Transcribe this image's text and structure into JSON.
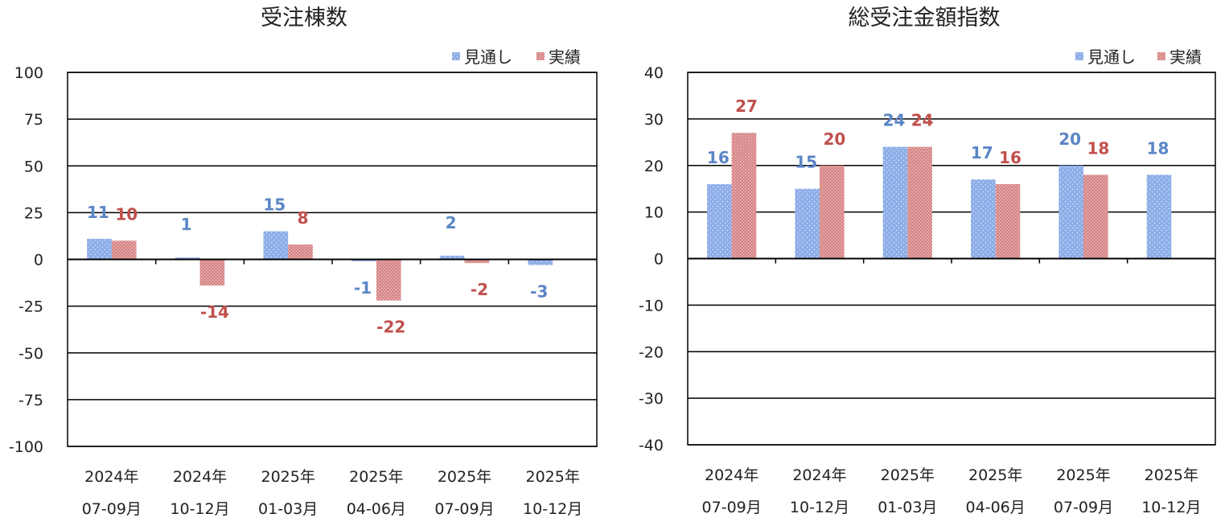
{
  "colors": {
    "forecast": "#8eaee8",
    "actual": "#d98a8a",
    "forecast_label": "#5b86c5",
    "actual_label": "#c0504d"
  },
  "chart_data": [
    {
      "type": "bar",
      "title": "受注棟数",
      "categories": [
        [
          "2024年",
          "07-09月"
        ],
        [
          "2024年",
          "10-12月"
        ],
        [
          "2025年",
          "01-03月"
        ],
        [
          "2025年",
          "04-06月"
        ],
        [
          "2025年",
          "07-09月"
        ],
        [
          "2025年",
          "10-12月"
        ]
      ],
      "series": [
        {
          "name": "見通し",
          "values": [
            11,
            1,
            15,
            -1,
            2,
            -3
          ],
          "labels": [
            "11",
            "1",
            "15",
            "-1",
            "2",
            "-3"
          ]
        },
        {
          "name": "実績",
          "values": [
            10,
            -14,
            8,
            -22,
            -2,
            null
          ],
          "labels": [
            "10",
            "-14",
            "8",
            "-22",
            "-2",
            ""
          ]
        }
      ],
      "ylim": [
        -100,
        100
      ],
      "yticks": [
        "100",
        "75",
        "50",
        "25",
        "0",
        "-25",
        "-50",
        "-75",
        "-100"
      ],
      "ytick_values": [
        100,
        75,
        50,
        25,
        0,
        -25,
        -50,
        -75,
        -100
      ],
      "grid": true,
      "legend": "top-right"
    },
    {
      "type": "bar",
      "title": "総受注金額指数",
      "categories": [
        [
          "2024年",
          "07-09月"
        ],
        [
          "2024年",
          "10-12月"
        ],
        [
          "2025年",
          "01-03月"
        ],
        [
          "2025年",
          "04-06月"
        ],
        [
          "2025年",
          "07-09月"
        ],
        [
          "2025年",
          "10-12月"
        ]
      ],
      "series": [
        {
          "name": "見通し",
          "values": [
            16,
            15,
            24,
            17,
            20,
            18
          ],
          "labels": [
            "16",
            "15",
            "24",
            "17",
            "20",
            "18"
          ]
        },
        {
          "name": "実績",
          "values": [
            27,
            20,
            24,
            16,
            18,
            null
          ],
          "labels": [
            "27",
            "20",
            "24",
            "16",
            "18",
            ""
          ]
        }
      ],
      "ylim": [
        -40,
        40
      ],
      "yticks": [
        "40",
        "30",
        "20",
        "10",
        "0",
        "-10",
        "-20",
        "-30",
        "-40"
      ],
      "ytick_values": [
        40,
        30,
        20,
        10,
        0,
        -10,
        -20,
        -30,
        -40
      ],
      "grid": true,
      "legend": "top-right"
    }
  ]
}
